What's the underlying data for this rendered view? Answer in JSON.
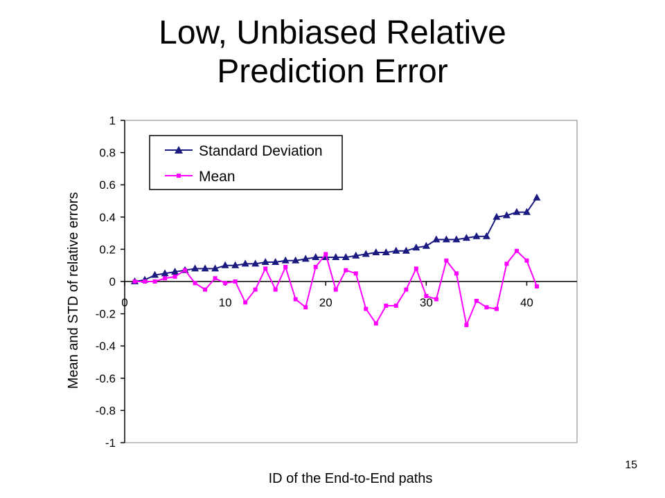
{
  "slide": {
    "title_line1": "Low, Unbiased Relative",
    "title_line2": "Prediction Error",
    "page_number": "15"
  },
  "chart_data": {
    "type": "line",
    "xlabel": "ID of the End-to-End paths",
    "ylabel": "Mean and STD of relative errors",
    "xlim": [
      0,
      45
    ],
    "ylim": [
      -1,
      1
    ],
    "x_ticks": [
      0,
      10,
      20,
      30,
      40
    ],
    "x_tick_labels": [
      "0",
      "10",
      "20",
      "30",
      "40"
    ],
    "y_ticks": [
      1,
      0.8,
      0.6,
      0.4,
      0.2,
      0,
      -0.2,
      -0.4,
      -0.6,
      -0.8,
      -1
    ],
    "y_tick_labels": [
      "1",
      "0.8",
      "0.6",
      "0.4",
      "0.2",
      "0",
      "-0.2",
      "-0.4",
      "-0.6",
      "-0.8",
      "-1"
    ],
    "grid": false,
    "legend_position": "top-left",
    "x": [
      1,
      2,
      3,
      4,
      5,
      6,
      7,
      8,
      9,
      10,
      11,
      12,
      13,
      14,
      15,
      16,
      17,
      18,
      19,
      20,
      21,
      22,
      23,
      24,
      25,
      26,
      27,
      28,
      29,
      30,
      31,
      32,
      33,
      34,
      35,
      36,
      37,
      38,
      39,
      40,
      41
    ],
    "series": [
      {
        "name": "Standard Deviation",
        "color": "#1a1a80",
        "marker": "triangle",
        "values": [
          0.0,
          0.01,
          0.04,
          0.05,
          0.06,
          0.07,
          0.08,
          0.08,
          0.08,
          0.1,
          0.1,
          0.11,
          0.11,
          0.12,
          0.12,
          0.13,
          0.13,
          0.14,
          0.15,
          0.15,
          0.15,
          0.15,
          0.16,
          0.17,
          0.18,
          0.18,
          0.19,
          0.19,
          0.21,
          0.22,
          0.26,
          0.26,
          0.26,
          0.27,
          0.28,
          0.28,
          0.4,
          0.41,
          0.43,
          0.43,
          0.52
        ]
      },
      {
        "name": "Mean",
        "color": "#ff00ff",
        "marker": "square",
        "values": [
          0.0,
          0.0,
          0.0,
          0.02,
          0.03,
          0.07,
          -0.01,
          -0.05,
          0.02,
          -0.01,
          0.0,
          -0.13,
          -0.05,
          0.08,
          -0.05,
          0.09,
          -0.11,
          -0.16,
          0.09,
          0.17,
          -0.05,
          0.07,
          0.05,
          -0.17,
          -0.26,
          -0.15,
          -0.15,
          -0.05,
          0.08,
          -0.09,
          -0.11,
          0.13,
          0.05,
          -0.27,
          -0.12,
          -0.16,
          -0.17,
          0.11,
          0.19,
          0.13,
          -0.03
        ]
      }
    ]
  }
}
